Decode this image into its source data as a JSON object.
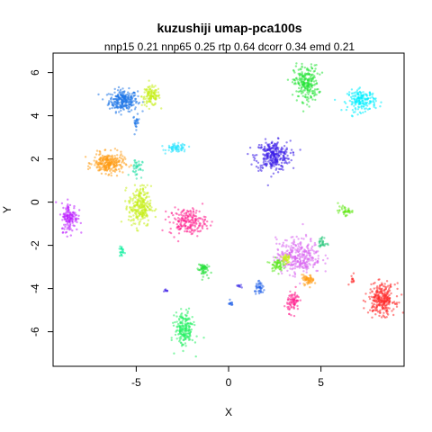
{
  "chart_data": {
    "type": "scatter",
    "title": "kuzushiji umap-pca100s",
    "subtitle": "nnp15 0.21 nnp65 0.25 rtp 0.64 dcorr 0.34 emd 0.21",
    "xlabel": "X",
    "ylabel": "Y",
    "xlim": [
      -9.5,
      9.5
    ],
    "ylim": [
      -7.6,
      6.9
    ],
    "xticks": [
      -5,
      0,
      5
    ],
    "yticks": [
      -6,
      -4,
      -2,
      0,
      2,
      4,
      6
    ],
    "grid": false,
    "legend": "none",
    "clusters": [
      {
        "color": "#1f77e8",
        "cx": -5.7,
        "cy": 4.7,
        "rx": 0.7,
        "ry": 0.45,
        "n": 260
      },
      {
        "color": "#1f77e8",
        "cx": -5.0,
        "cy": 3.7,
        "rx": 0.15,
        "ry": 0.3,
        "n": 25
      },
      {
        "color": "#c6ef1a",
        "cx": -4.2,
        "cy": 4.9,
        "rx": 0.45,
        "ry": 0.4,
        "n": 120
      },
      {
        "color": "#2ae3ff",
        "cx": -2.8,
        "cy": 2.5,
        "rx": 0.5,
        "ry": 0.18,
        "n": 70
      },
      {
        "color": "#3a1de8",
        "cx": 2.4,
        "cy": 2.15,
        "rx": 0.85,
        "ry": 0.62,
        "n": 300
      },
      {
        "color": "#27e339",
        "cx": 4.2,
        "cy": 5.5,
        "rx": 0.6,
        "ry": 0.75,
        "n": 240
      },
      {
        "color": "#00eeff",
        "cx": 7.2,
        "cy": 4.7,
        "rx": 0.7,
        "ry": 0.45,
        "n": 180
      },
      {
        "color": "#ff9c16",
        "cx": -6.5,
        "cy": 1.8,
        "rx": 0.75,
        "ry": 0.42,
        "n": 260
      },
      {
        "color": "#28e0a8",
        "cx": -5.0,
        "cy": 1.6,
        "rx": 0.3,
        "ry": 0.4,
        "n": 40
      },
      {
        "color": "#c6ef1a",
        "cx": -4.8,
        "cy": -0.2,
        "rx": 0.55,
        "ry": 0.85,
        "n": 260
      },
      {
        "color": "#bb1dff",
        "cx": -8.6,
        "cy": -0.7,
        "rx": 0.4,
        "ry": 0.6,
        "n": 140
      },
      {
        "color": "#ff1f8e",
        "cx": -2.2,
        "cy": -0.9,
        "rx": 0.9,
        "ry": 0.55,
        "n": 200
      },
      {
        "color": "#60e814",
        "cx": 6.3,
        "cy": -0.4,
        "rx": 0.35,
        "ry": 0.18,
        "n": 40
      },
      {
        "color": "#00ee99",
        "cx": -5.8,
        "cy": -2.3,
        "rx": 0.12,
        "ry": 0.25,
        "n": 20
      },
      {
        "color": "#26e03d",
        "cx": -1.4,
        "cy": -3.1,
        "rx": 0.25,
        "ry": 0.3,
        "n": 60
      },
      {
        "color": "#d866f0",
        "cx": 3.8,
        "cy": -2.5,
        "rx": 1.1,
        "ry": 0.75,
        "n": 320
      },
      {
        "color": "#5be81d",
        "cx": 2.6,
        "cy": -2.9,
        "rx": 0.3,
        "ry": 0.25,
        "n": 60
      },
      {
        "color": "#c6ef1a",
        "cx": 3.1,
        "cy": -2.6,
        "rx": 0.2,
        "ry": 0.25,
        "n": 40
      },
      {
        "color": "#27c77a",
        "cx": 5.1,
        "cy": -1.9,
        "rx": 0.2,
        "ry": 0.25,
        "n": 30
      },
      {
        "color": "#ff9c16",
        "cx": 4.3,
        "cy": -3.6,
        "rx": 0.3,
        "ry": 0.2,
        "n": 60
      },
      {
        "color": "#ff1f8e",
        "cx": 3.5,
        "cy": -4.6,
        "rx": 0.3,
        "ry": 0.45,
        "n": 80
      },
      {
        "color": "#1f5fe8",
        "cx": 1.7,
        "cy": -4.0,
        "rx": 0.25,
        "ry": 0.25,
        "n": 40
      },
      {
        "color": "#4a3de8",
        "cx": 0.6,
        "cy": -3.9,
        "rx": 0.15,
        "ry": 0.08,
        "n": 12
      },
      {
        "color": "#2060e8",
        "cx": 0.1,
        "cy": -4.7,
        "rx": 0.15,
        "ry": 0.1,
        "n": 12
      },
      {
        "color": "#ff2a2a",
        "cx": 8.3,
        "cy": -4.5,
        "rx": 0.65,
        "ry": 0.65,
        "n": 280
      },
      {
        "color": "#ff2a2a",
        "cx": 6.7,
        "cy": -3.6,
        "rx": 0.15,
        "ry": 0.2,
        "n": 12
      },
      {
        "color": "#26f064",
        "cx": -2.4,
        "cy": -5.9,
        "rx": 0.45,
        "ry": 0.75,
        "n": 200
      },
      {
        "color": "#4020e8",
        "cx": -3.4,
        "cy": -4.1,
        "rx": 0.12,
        "ry": 0.08,
        "n": 8
      }
    ]
  }
}
